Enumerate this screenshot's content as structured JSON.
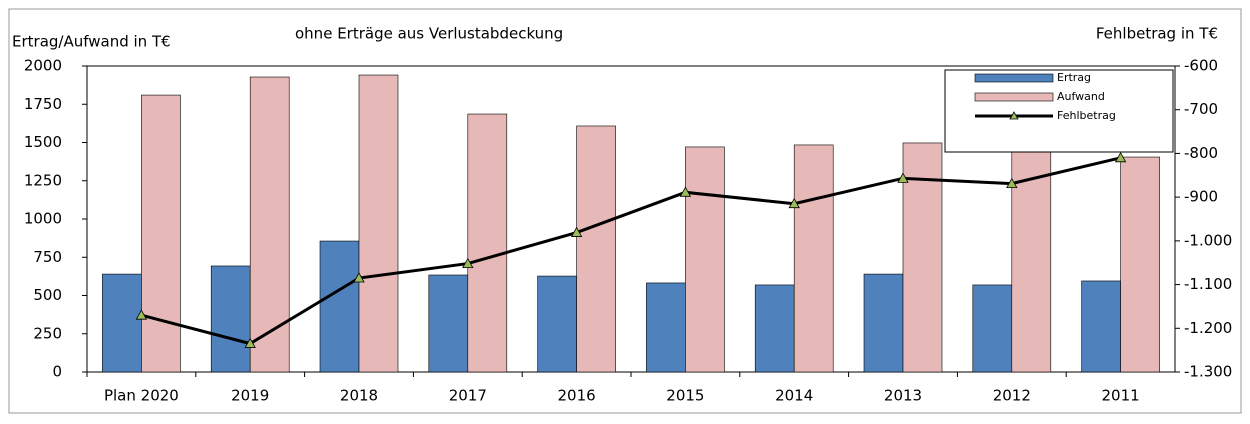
{
  "chart_data": {
    "type": "bar",
    "title": "ohne Erträge aus Verlustabdeckung",
    "ylabel": "Ertrag/Aufwand in T€",
    "y2label": "Fehlbetrag in T€",
    "categories": [
      "Plan 2020",
      "2019",
      "2018",
      "2017",
      "2016",
      "2015",
      "2014",
      "2013",
      "2012",
      "2011"
    ],
    "series": [
      {
        "name": "Ertrag",
        "type": "bar",
        "color": "#4f81bd",
        "values": [
          640,
          693,
          856,
          634,
          627,
          582,
          569,
          640,
          569,
          595
        ]
      },
      {
        "name": "Aufwand",
        "type": "bar",
        "color": "#e6b8b7",
        "values": [
          1810,
          1928,
          1941,
          1686,
          1608,
          1471,
          1484,
          1497,
          1438,
          1405
        ]
      },
      {
        "name": "Fehlbetrag",
        "type": "line",
        "axis": "y2",
        "color": "#000000",
        "marker_color": "#9bbb59",
        "values": [
          -1170,
          -1235,
          -1085,
          -1052,
          -981,
          -889,
          -915,
          -857,
          -869,
          -810
        ]
      }
    ],
    "ylim": [
      0,
      2000
    ],
    "yticks": [
      0,
      250,
      500,
      750,
      1000,
      1250,
      1500,
      1750,
      2000
    ],
    "y2lim": [
      -1300,
      -600
    ],
    "y2ticks": [
      {
        "value": -1300,
        "label": "-1.300"
      },
      {
        "value": -1200,
        "label": "-1.200"
      },
      {
        "value": -1100,
        "label": "-1.100"
      },
      {
        "value": -1000,
        "label": "-1.000"
      },
      -900,
      -800,
      -700,
      -600
    ],
    "legend": "upper right",
    "grid": false
  }
}
